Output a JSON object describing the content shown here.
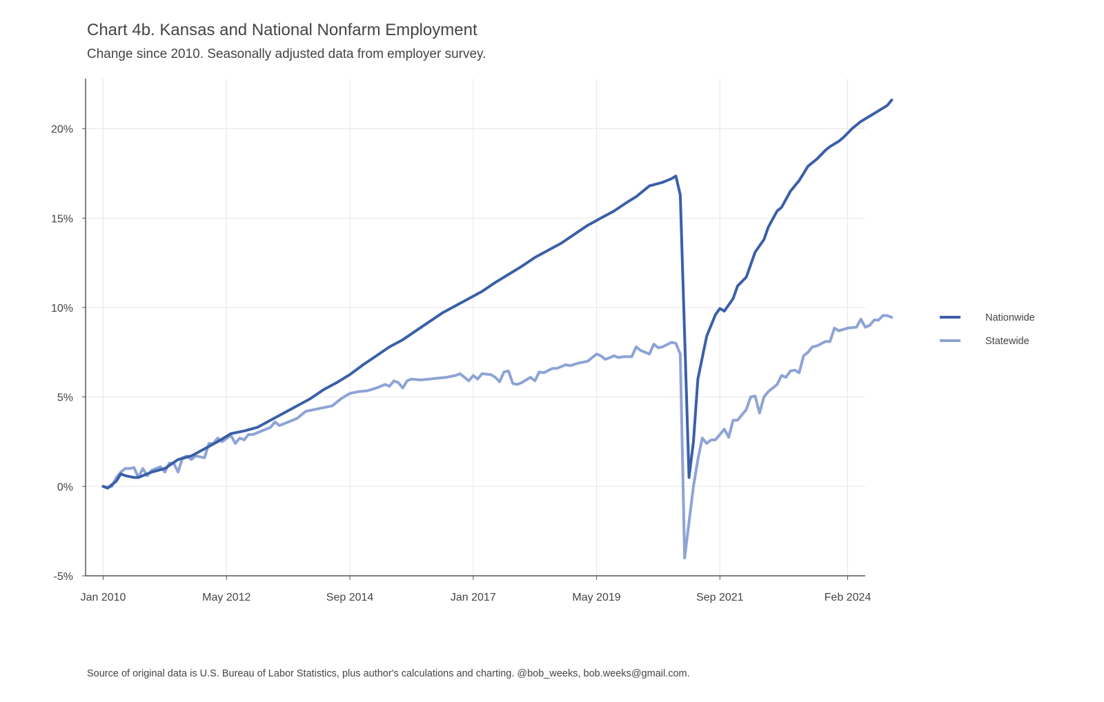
{
  "title": "Chart 4b. Kansas and National Nonfarm Employment",
  "subtitle": "Change since 2010. Seasonally adjusted data from employer survey.",
  "caption": "Source of original data is U.S. Bureau of Labor Statistics, plus author's calculations and charting. @bob_weeks, bob.weeks@gmail.com.",
  "colors": {
    "nationwide": "#3a5fa8",
    "statewide": "#8ea3d6",
    "grid": "#e6e6e6",
    "axis": "#555555"
  },
  "chart_data": {
    "type": "line",
    "xlabel": "",
    "ylabel": "",
    "x_ticks": [
      "Jan 2010",
      "May 2012",
      "Sep 2014",
      "Jan 2017",
      "May 2019",
      "Sep 2021",
      "Feb 2024"
    ],
    "x_tick_dates": [
      "2010-01",
      "2012-05",
      "2014-09",
      "2017-01",
      "2019-05",
      "2021-09",
      "2024-02"
    ],
    "y_ticks": [
      "-5%",
      "0%",
      "5%",
      "10%",
      "15%",
      "20%"
    ],
    "y_tick_values": [
      -5,
      0,
      5,
      10,
      15,
      20
    ],
    "ylim": [
      -5,
      22.8
    ],
    "xlim": [
      "2009-09",
      "2024-06"
    ],
    "grid": true,
    "legend_position": "right",
    "series": [
      {
        "name": "Nationwide",
        "color": "#3a5fa8",
        "points": [
          [
            "2010-01",
            0.0
          ],
          [
            "2010-02",
            -0.1
          ],
          [
            "2010-03",
            0.1
          ],
          [
            "2010-04",
            0.3
          ],
          [
            "2010-05",
            0.7
          ],
          [
            "2010-06",
            0.6
          ],
          [
            "2010-07",
            0.55
          ],
          [
            "2010-08",
            0.5
          ],
          [
            "2010-09",
            0.5
          ],
          [
            "2010-10",
            0.6
          ],
          [
            "2010-12",
            0.8
          ],
          [
            "2011-03",
            1.0
          ],
          [
            "2011-06",
            1.5
          ],
          [
            "2011-09",
            1.7
          ],
          [
            "2011-12",
            2.1
          ],
          [
            "2012-03",
            2.5
          ],
          [
            "2012-06",
            2.95
          ],
          [
            "2012-09",
            3.1
          ],
          [
            "2012-12",
            3.3
          ],
          [
            "2013-03",
            3.7
          ],
          [
            "2013-06",
            4.1
          ],
          [
            "2013-09",
            4.5
          ],
          [
            "2013-12",
            4.9
          ],
          [
            "2014-03",
            5.4
          ],
          [
            "2014-06",
            5.8
          ],
          [
            "2014-09",
            6.25
          ],
          [
            "2014-12",
            6.8
          ],
          [
            "2015-03",
            7.3
          ],
          [
            "2015-06",
            7.8
          ],
          [
            "2015-09",
            8.2
          ],
          [
            "2015-12",
            8.7
          ],
          [
            "2016-03",
            9.2
          ],
          [
            "2016-06",
            9.7
          ],
          [
            "2016-09",
            10.1
          ],
          [
            "2016-12",
            10.5
          ],
          [
            "2017-03",
            10.9
          ],
          [
            "2017-06",
            11.4
          ],
          [
            "2017-09",
            11.85
          ],
          [
            "2017-12",
            12.3
          ],
          [
            "2018-03",
            12.8
          ],
          [
            "2018-06",
            13.2
          ],
          [
            "2018-09",
            13.6
          ],
          [
            "2018-12",
            14.1
          ],
          [
            "2019-03",
            14.6
          ],
          [
            "2019-06",
            15.0
          ],
          [
            "2019-09",
            15.4
          ],
          [
            "2019-12",
            15.9
          ],
          [
            "2020-02",
            16.2
          ],
          [
            "2020-05",
            16.8
          ],
          [
            "2020-08",
            17.0
          ],
          [
            "2020-10",
            17.2
          ],
          [
            "2020-11",
            17.35
          ],
          [
            "2020-12",
            16.3
          ],
          [
            "2021-02",
            0.5
          ],
          [
            "2021-03",
            2.5
          ],
          [
            "2021-04",
            6.0
          ],
          [
            "2021-06",
            8.4
          ],
          [
            "2021-08",
            9.6
          ],
          [
            "2021-09",
            9.95
          ],
          [
            "2021-10",
            9.8
          ],
          [
            "2021-12",
            10.5
          ],
          [
            "2022-01",
            11.2
          ],
          [
            "2022-03",
            11.7
          ],
          [
            "2022-05",
            13.1
          ],
          [
            "2022-07",
            13.8
          ],
          [
            "2022-08",
            14.5
          ],
          [
            "2022-10",
            15.4
          ],
          [
            "2022-11",
            15.6
          ],
          [
            "2023-01",
            16.5
          ],
          [
            "2023-03",
            17.1
          ],
          [
            "2023-04",
            17.5
          ],
          [
            "2023-05",
            17.9
          ],
          [
            "2023-07",
            18.3
          ],
          [
            "2023-09",
            18.8
          ],
          [
            "2023-10",
            19.0
          ],
          [
            "2023-12",
            19.3
          ],
          [
            "2024-01",
            19.5
          ],
          [
            "2024-03",
            20.0
          ],
          [
            "2024-05",
            20.4
          ],
          [
            "2024-07",
            20.7
          ],
          [
            "2024-09",
            21.0
          ],
          [
            "2024-11",
            21.3
          ],
          [
            "2024-12",
            21.6
          ]
        ]
      },
      {
        "name": "Statewide",
        "color": "#8ea3d6",
        "points": [
          [
            "2010-01",
            0.0
          ],
          [
            "2010-02",
            -0.05
          ],
          [
            "2010-03",
            0.0
          ],
          [
            "2010-04",
            0.5
          ],
          [
            "2010-05",
            0.8
          ],
          [
            "2010-06",
            1.0
          ],
          [
            "2010-07",
            1.0
          ],
          [
            "2010-08",
            1.05
          ],
          [
            "2010-09",
            0.5
          ],
          [
            "2010-10",
            1.0
          ],
          [
            "2010-11",
            0.6
          ],
          [
            "2010-12",
            0.9
          ],
          [
            "2011-02",
            1.1
          ],
          [
            "2011-03",
            0.8
          ],
          [
            "2011-04",
            1.3
          ],
          [
            "2011-05",
            1.3
          ],
          [
            "2011-06",
            0.8
          ],
          [
            "2011-07",
            1.6
          ],
          [
            "2011-08",
            1.7
          ],
          [
            "2011-09",
            1.5
          ],
          [
            "2011-10",
            1.7
          ],
          [
            "2011-12",
            1.6
          ],
          [
            "2012-01",
            2.4
          ],
          [
            "2012-02",
            2.4
          ],
          [
            "2012-03",
            2.7
          ],
          [
            "2012-04",
            2.5
          ],
          [
            "2012-06",
            2.85
          ],
          [
            "2012-07",
            2.4
          ],
          [
            "2012-08",
            2.7
          ],
          [
            "2012-09",
            2.6
          ],
          [
            "2012-10",
            2.9
          ],
          [
            "2012-11",
            2.9
          ],
          [
            "2012-12",
            3.0
          ],
          [
            "2013-01",
            3.1
          ],
          [
            "2013-02",
            3.2
          ],
          [
            "2013-03",
            3.3
          ],
          [
            "2013-04",
            3.6
          ],
          [
            "2013-05",
            3.4
          ],
          [
            "2013-07",
            3.6
          ],
          [
            "2013-09",
            3.8
          ],
          [
            "2013-11",
            4.2
          ],
          [
            "2014-01",
            4.3
          ],
          [
            "2014-03",
            4.4
          ],
          [
            "2014-05",
            4.5
          ],
          [
            "2014-07",
            4.9
          ],
          [
            "2014-09",
            5.2
          ],
          [
            "2014-11",
            5.3
          ],
          [
            "2015-01",
            5.35
          ],
          [
            "2015-03",
            5.5
          ],
          [
            "2015-05",
            5.7
          ],
          [
            "2015-06",
            5.6
          ],
          [
            "2015-07",
            5.9
          ],
          [
            "2015-08",
            5.8
          ],
          [
            "2015-09",
            5.5
          ],
          [
            "2015-10",
            5.9
          ],
          [
            "2015-11",
            6.0
          ],
          [
            "2016-01",
            5.95
          ],
          [
            "2016-03",
            6.0
          ],
          [
            "2016-05",
            6.05
          ],
          [
            "2016-07",
            6.1
          ],
          [
            "2016-09",
            6.2
          ],
          [
            "2016-10",
            6.3
          ],
          [
            "2016-11",
            6.1
          ],
          [
            "2016-12",
            5.9
          ],
          [
            "2017-01",
            6.2
          ],
          [
            "2017-02",
            6.0
          ],
          [
            "2017-03",
            6.3
          ],
          [
            "2017-05",
            6.25
          ],
          [
            "2017-06",
            6.1
          ],
          [
            "2017-07",
            5.85
          ],
          [
            "2017-08",
            6.4
          ],
          [
            "2017-09",
            6.45
          ],
          [
            "2017-10",
            5.75
          ],
          [
            "2017-11",
            5.7
          ],
          [
            "2017-12",
            5.8
          ],
          [
            "2018-02",
            6.1
          ],
          [
            "2018-03",
            5.9
          ],
          [
            "2018-04",
            6.4
          ],
          [
            "2018-05",
            6.35
          ],
          [
            "2018-07",
            6.6
          ],
          [
            "2018-08",
            6.6
          ],
          [
            "2018-10",
            6.8
          ],
          [
            "2018-11",
            6.75
          ],
          [
            "2019-01",
            6.9
          ],
          [
            "2019-03",
            7.0
          ],
          [
            "2019-05",
            7.4
          ],
          [
            "2019-06",
            7.3
          ],
          [
            "2019-07",
            7.1
          ],
          [
            "2019-09",
            7.3
          ],
          [
            "2019-10",
            7.2
          ],
          [
            "2019-11",
            7.25
          ],
          [
            "2020-01",
            7.25
          ],
          [
            "2020-02",
            7.8
          ],
          [
            "2020-03",
            7.6
          ],
          [
            "2020-05",
            7.4
          ],
          [
            "2020-06",
            7.95
          ],
          [
            "2020-07",
            7.75
          ],
          [
            "2020-08",
            7.8
          ],
          [
            "2020-10",
            8.05
          ],
          [
            "2020-11",
            8.0
          ],
          [
            "2020-12",
            7.4
          ],
          [
            "2021-01",
            -4.0
          ],
          [
            "2021-02",
            -2.0
          ],
          [
            "2021-03",
            0.0
          ],
          [
            "2021-04",
            1.5
          ],
          [
            "2021-05",
            2.7
          ],
          [
            "2021-06",
            2.4
          ],
          [
            "2021-07",
            2.6
          ],
          [
            "2021-08",
            2.6
          ],
          [
            "2021-10",
            3.2
          ],
          [
            "2021-11",
            2.75
          ],
          [
            "2021-12",
            3.7
          ],
          [
            "2022-01",
            3.7
          ],
          [
            "2022-03",
            4.3
          ],
          [
            "2022-04",
            5.0
          ],
          [
            "2022-05",
            5.05
          ],
          [
            "2022-06",
            4.1
          ],
          [
            "2022-07",
            5.0
          ],
          [
            "2022-08",
            5.3
          ],
          [
            "2022-10",
            5.7
          ],
          [
            "2022-11",
            6.2
          ],
          [
            "2022-12",
            6.1
          ],
          [
            "2023-01",
            6.45
          ],
          [
            "2023-02",
            6.5
          ],
          [
            "2023-03",
            6.35
          ],
          [
            "2023-04",
            7.3
          ],
          [
            "2023-05",
            7.5
          ],
          [
            "2023-06",
            7.8
          ],
          [
            "2023-07",
            7.85
          ],
          [
            "2023-09",
            8.1
          ],
          [
            "2023-10",
            8.1
          ],
          [
            "2023-11",
            8.85
          ],
          [
            "2023-12",
            8.7
          ],
          [
            "2024-02",
            8.85
          ],
          [
            "2024-04",
            8.9
          ],
          [
            "2024-05",
            9.35
          ],
          [
            "2024-06",
            8.9
          ],
          [
            "2024-07",
            9.0
          ],
          [
            "2024-08",
            9.3
          ],
          [
            "2024-09",
            9.3
          ],
          [
            "2024-10",
            9.55
          ],
          [
            "2024-11",
            9.55
          ],
          [
            "2024-12",
            9.45
          ]
        ]
      }
    ]
  }
}
